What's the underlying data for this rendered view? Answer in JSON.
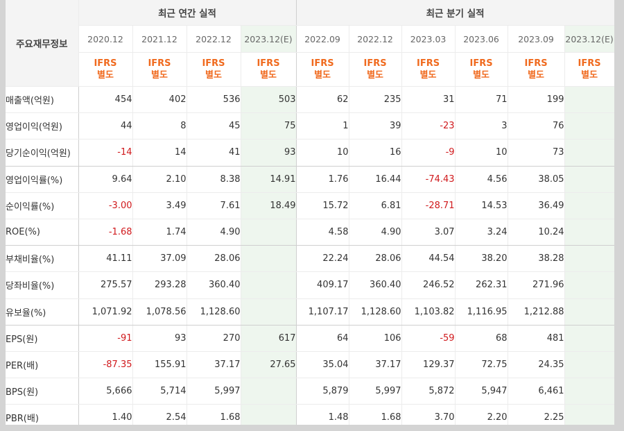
{
  "header": {
    "label": "주요재무정보",
    "annual_title": "최근 연간 실적",
    "quarter_title": "최근 분기 실적",
    "annual_periods": [
      "2020.12",
      "2021.12",
      "2022.12",
      "2023.12(E)"
    ],
    "quarter_periods": [
      "2022.09",
      "2022.12",
      "2023.03",
      "2023.06",
      "2023.09",
      "2023.12(E)"
    ],
    "ifrs_line1": "IFRS",
    "ifrs_line2": "별도"
  },
  "rows": [
    {
      "label": "매출액(억원)",
      "annual": [
        "454",
        "402",
        "536",
        "503"
      ],
      "quarter": [
        "62",
        "235",
        "31",
        "71",
        "199",
        ""
      ]
    },
    {
      "label": "영업이익(억원)",
      "annual": [
        "44",
        "8",
        "45",
        "75"
      ],
      "quarter": [
        "1",
        "39",
        "-23",
        "3",
        "76",
        ""
      ]
    },
    {
      "label": "당기순이익(억원)",
      "annual": [
        "-14",
        "14",
        "41",
        "93"
      ],
      "quarter": [
        "10",
        "16",
        "-9",
        "10",
        "73",
        ""
      ]
    },
    {
      "label": "영업이익률(%)",
      "annual": [
        "9.64",
        "2.10",
        "8.38",
        "14.91"
      ],
      "quarter": [
        "1.76",
        "16.44",
        "-74.43",
        "4.56",
        "38.05",
        ""
      ]
    },
    {
      "label": "순이익률(%)",
      "annual": [
        "-3.00",
        "3.49",
        "7.61",
        "18.49"
      ],
      "quarter": [
        "15.72",
        "6.81",
        "-28.71",
        "14.53",
        "36.49",
        ""
      ]
    },
    {
      "label": "ROE(%)",
      "annual": [
        "-1.68",
        "1.74",
        "4.90",
        ""
      ],
      "quarter": [
        "4.58",
        "4.90",
        "3.07",
        "3.24",
        "10.24",
        ""
      ]
    },
    {
      "label": "부채비율(%)",
      "annual": [
        "41.11",
        "37.09",
        "28.06",
        ""
      ],
      "quarter": [
        "22.24",
        "28.06",
        "44.54",
        "38.20",
        "38.28",
        ""
      ]
    },
    {
      "label": "당좌비율(%)",
      "annual": [
        "275.57",
        "293.28",
        "360.40",
        ""
      ],
      "quarter": [
        "409.17",
        "360.40",
        "246.52",
        "262.31",
        "271.96",
        ""
      ]
    },
    {
      "label": "유보율(%)",
      "annual": [
        "1,071.92",
        "1,078.56",
        "1,128.60",
        ""
      ],
      "quarter": [
        "1,107.17",
        "1,128.60",
        "1,103.82",
        "1,116.95",
        "1,212.88",
        ""
      ]
    },
    {
      "label": "EPS(원)",
      "annual": [
        "-91",
        "93",
        "270",
        "617"
      ],
      "quarter": [
        "64",
        "106",
        "-59",
        "68",
        "481",
        ""
      ]
    },
    {
      "label": "PER(배)",
      "annual": [
        "-87.35",
        "155.91",
        "37.17",
        "27.65"
      ],
      "quarter": [
        "35.04",
        "37.17",
        "129.37",
        "72.75",
        "24.35",
        ""
      ]
    },
    {
      "label": "BPS(원)",
      "annual": [
        "5,666",
        "5,714",
        "5,997",
        ""
      ],
      "quarter": [
        "5,879",
        "5,997",
        "5,872",
        "5,947",
        "6,461",
        ""
      ]
    },
    {
      "label": "PBR(배)",
      "annual": [
        "1.40",
        "2.54",
        "1.68",
        ""
      ],
      "quarter": [
        "1.48",
        "1.68",
        "3.70",
        "2.20",
        "2.25",
        ""
      ]
    }
  ],
  "colors": {
    "ifrs": "#f06a1e",
    "negative": "#d0191c",
    "estimate_bg": "#eef6ee"
  }
}
